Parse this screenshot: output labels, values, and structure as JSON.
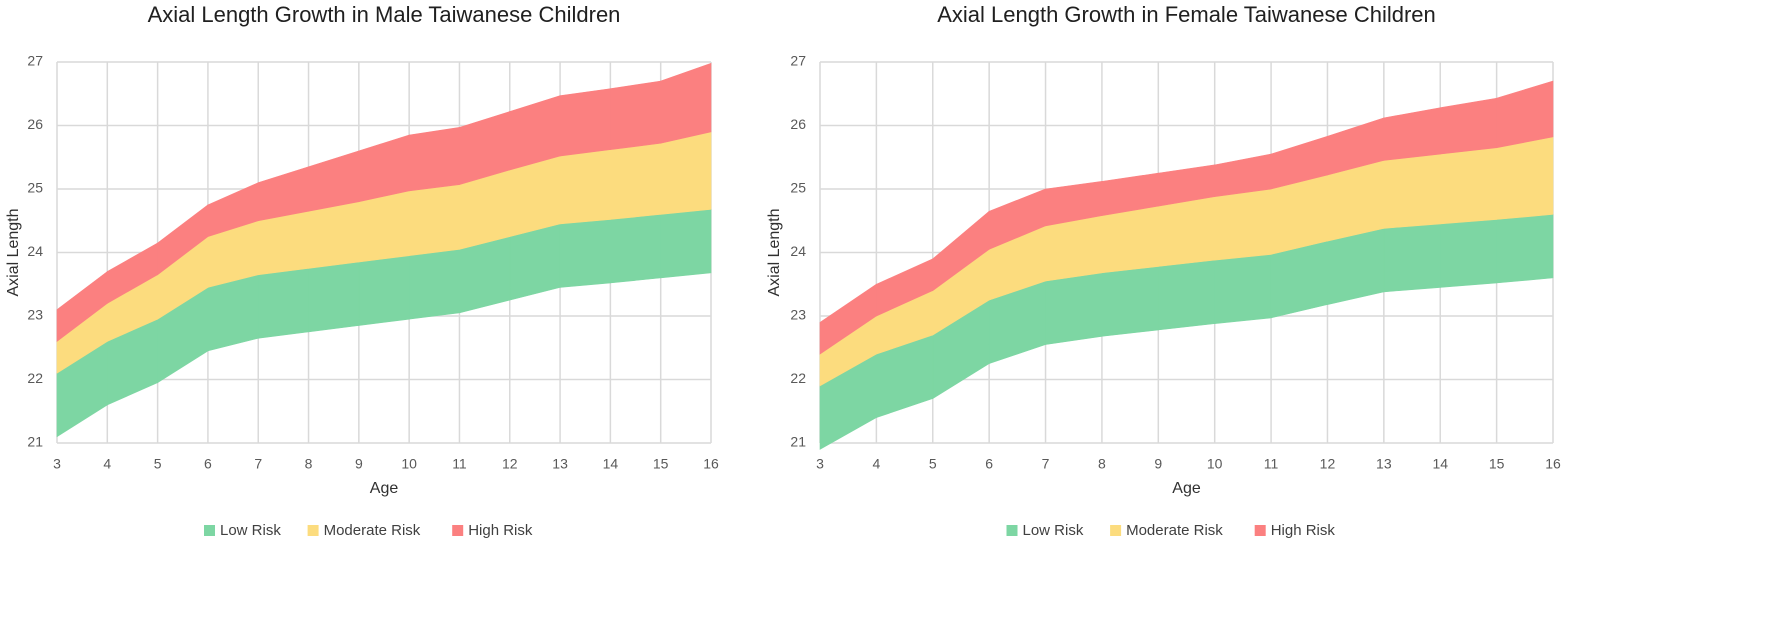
{
  "chart_data": [
    {
      "type": "range_area",
      "title": "Axial Length Growth in Male Taiwanese Children",
      "x_label": "Age",
      "y_label": "Axial Length",
      "x": [
        3,
        4,
        5,
        6,
        7,
        8,
        9,
        10,
        11,
        12,
        13,
        14,
        15,
        16
      ],
      "xlim": [
        3,
        16
      ],
      "xticks": [
        3,
        4,
        5,
        6,
        7,
        8,
        9,
        10,
        11,
        12,
        13,
        14,
        15,
        16
      ],
      "ylim": [
        21,
        27
      ],
      "yticks": [
        21,
        22,
        23,
        24,
        25,
        26,
        27
      ],
      "grid": true,
      "legend": "bottom",
      "series": [
        {
          "name": "Low Risk",
          "color": "#7dd6a3",
          "lower": [
            21.1,
            21.6,
            21.95,
            22.45,
            22.65,
            22.75,
            22.85,
            22.95,
            23.05,
            23.25,
            23.45,
            23.52,
            23.6,
            23.68
          ],
          "upper": [
            22.1,
            22.6,
            22.95,
            23.45,
            23.65,
            23.75,
            23.85,
            23.95,
            24.05,
            24.25,
            24.45,
            24.52,
            24.6,
            24.68
          ]
        },
        {
          "name": "Moderate Risk",
          "color": "#fcdc7e",
          "lower": [
            22.1,
            22.6,
            22.95,
            23.45,
            23.65,
            23.75,
            23.85,
            23.95,
            24.05,
            24.25,
            24.45,
            24.52,
            24.6,
            24.68
          ],
          "upper": [
            22.6,
            23.2,
            23.65,
            24.25,
            24.5,
            24.65,
            24.8,
            24.97,
            25.07,
            25.3,
            25.52,
            25.62,
            25.72,
            25.9
          ]
        },
        {
          "name": "High Risk",
          "color": "#fb8080",
          "lower": [
            22.6,
            23.2,
            23.65,
            24.25,
            24.5,
            24.65,
            24.8,
            24.97,
            25.07,
            25.3,
            25.52,
            25.62,
            25.72,
            25.9
          ],
          "upper": [
            23.1,
            23.7,
            24.15,
            24.75,
            25.1,
            25.35,
            25.6,
            25.85,
            25.97,
            26.22,
            26.47,
            26.58,
            26.7,
            26.98
          ]
        }
      ]
    },
    {
      "type": "range_area",
      "title": "Axial Length Growth in Female Taiwanese Children",
      "x_label": "Age",
      "y_label": "Axial Length",
      "x": [
        3,
        4,
        5,
        6,
        7,
        8,
        9,
        10,
        11,
        12,
        13,
        14,
        15,
        16
      ],
      "xlim": [
        3,
        16
      ],
      "xticks": [
        3,
        4,
        5,
        6,
        7,
        8,
        9,
        10,
        11,
        12,
        13,
        14,
        15,
        16
      ],
      "ylim": [
        21,
        27
      ],
      "yticks": [
        21,
        22,
        23,
        24,
        25,
        26,
        27
      ],
      "grid": true,
      "legend": "bottom",
      "series": [
        {
          "name": "Low Risk",
          "color": "#7dd6a3",
          "lower": [
            20.9,
            21.4,
            21.7,
            22.25,
            22.55,
            22.68,
            22.78,
            22.88,
            22.97,
            23.18,
            23.38,
            23.45,
            23.52,
            23.6
          ],
          "upper": [
            21.9,
            22.4,
            22.7,
            23.25,
            23.55,
            23.68,
            23.78,
            23.88,
            23.97,
            24.18,
            24.38,
            24.45,
            24.52,
            24.6
          ]
        },
        {
          "name": "Moderate Risk",
          "color": "#fcdc7e",
          "lower": [
            21.9,
            22.4,
            22.7,
            23.25,
            23.55,
            23.68,
            23.78,
            23.88,
            23.97,
            24.18,
            24.38,
            24.45,
            24.52,
            24.6
          ],
          "upper": [
            22.4,
            23.0,
            23.4,
            24.05,
            24.42,
            24.58,
            24.73,
            24.88,
            25.0,
            25.22,
            25.45,
            25.55,
            25.65,
            25.82
          ]
        },
        {
          "name": "High Risk",
          "color": "#fb8080",
          "lower": [
            22.4,
            23.0,
            23.4,
            24.05,
            24.42,
            24.58,
            24.73,
            24.88,
            25.0,
            25.22,
            25.45,
            25.55,
            25.65,
            25.82
          ],
          "upper": [
            22.9,
            23.5,
            23.9,
            24.65,
            25.0,
            25.12,
            25.25,
            25.38,
            25.55,
            25.83,
            26.12,
            26.28,
            26.43,
            26.7
          ]
        }
      ]
    }
  ]
}
